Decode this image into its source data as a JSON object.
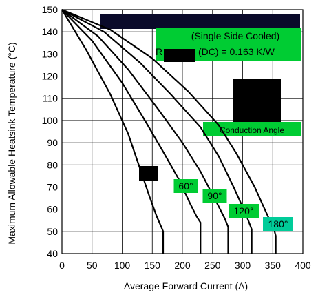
{
  "chart_data": {
    "type": "line",
    "title": "",
    "xlabel": "Average Forward Current (A)",
    "ylabel": "Maximum Allowable Heatsink Temperature (°C)",
    "xlim": [
      0,
      400
    ],
    "ylim": [
      40,
      150
    ],
    "x_ticks": [
      0,
      50,
      100,
      150,
      200,
      250,
      300,
      350,
      400
    ],
    "y_ticks": [
      40,
      50,
      60,
      70,
      80,
      90,
      100,
      110,
      120,
      130,
      140,
      150
    ],
    "grid": true,
    "legend": "none",
    "annotations": {
      "cooling": "(Single Side Cooled)",
      "resistance_prefix": "R",
      "resistance_suffix": "(DC) = 0.163 K/W",
      "conduction_angle": "Conduction Angle"
    },
    "series": [
      {
        "label": "",
        "color": "#000000",
        "points": [
          [
            0,
            150
          ],
          [
            40,
            132
          ],
          [
            80,
            112
          ],
          [
            110,
            94
          ],
          [
            130,
            78
          ],
          [
            145,
            66
          ],
          [
            157,
            57
          ],
          [
            165,
            52
          ],
          [
            168,
            50
          ],
          [
            168,
            40
          ]
        ]
      },
      {
        "label": "60°",
        "color": "#000000",
        "points": [
          [
            0,
            150
          ],
          [
            50,
            136
          ],
          [
            100,
            117
          ],
          [
            140,
            99
          ],
          [
            170,
            85
          ],
          [
            195,
            73
          ],
          [
            212,
            63
          ],
          [
            223,
            57
          ],
          [
            230,
            54
          ],
          [
            230,
            40
          ]
        ]
      },
      {
        "label": "90°",
        "color": "#000000",
        "points": [
          [
            0,
            150
          ],
          [
            60,
            138
          ],
          [
            110,
            123
          ],
          [
            160,
            105
          ],
          [
            200,
            90
          ],
          [
            230,
            77
          ],
          [
            255,
            64
          ],
          [
            270,
            56
          ],
          [
            276,
            52
          ],
          [
            276,
            40
          ]
        ]
      },
      {
        "label": "120°",
        "color": "#000000",
        "points": [
          [
            0,
            150
          ],
          [
            70,
            140
          ],
          [
            130,
            126
          ],
          [
            180,
            112
          ],
          [
            230,
            97
          ],
          [
            260,
            84
          ],
          [
            285,
            70
          ],
          [
            305,
            58
          ],
          [
            315,
            51
          ],
          [
            315,
            40
          ]
        ]
      },
      {
        "label": "180°",
        "color": "#000000",
        "points": [
          [
            0,
            150
          ],
          [
            80,
            141
          ],
          [
            150,
            128
          ],
          [
            210,
            113
          ],
          [
            260,
            98
          ],
          [
            290,
            85
          ],
          [
            320,
            70
          ],
          [
            340,
            58
          ],
          [
            352,
            51
          ],
          [
            355,
            48
          ],
          [
            355,
            40
          ]
        ]
      }
    ]
  }
}
